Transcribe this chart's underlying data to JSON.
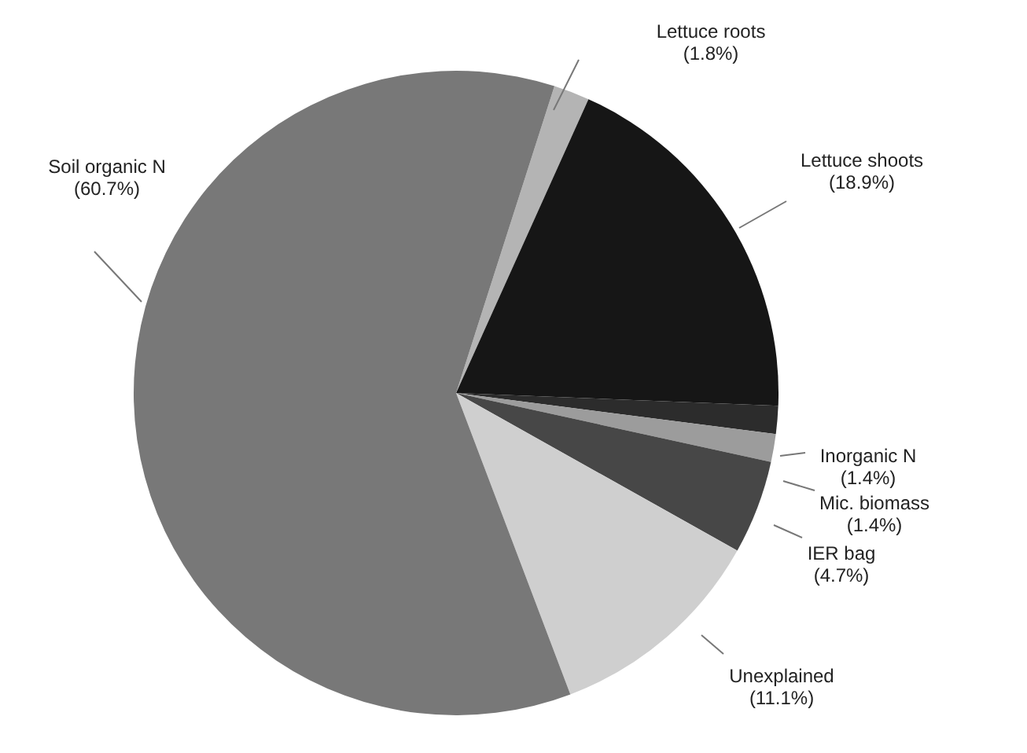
{
  "chart_data": {
    "type": "pie",
    "categories": [
      "Lettuce roots",
      "Lettuce shoots",
      "Inorganic N",
      "Mic. biomass",
      "IER bag",
      "Unexplained",
      "Soil organic N"
    ],
    "values": [
      1.8,
      18.9,
      1.4,
      1.4,
      4.7,
      11.1,
      60.7
    ],
    "value_labels": [
      "(1.8%)",
      "(18.9%)",
      "(1.4%)",
      "(1.4%)",
      "(4.7%)",
      "(11.1%)",
      "(60.7%)"
    ],
    "colors": [
      "#b4b4b4",
      "#161616",
      "#2c2c2c",
      "#9c9c9c",
      "#474747",
      "#cfcfcf",
      "#787878"
    ]
  }
}
